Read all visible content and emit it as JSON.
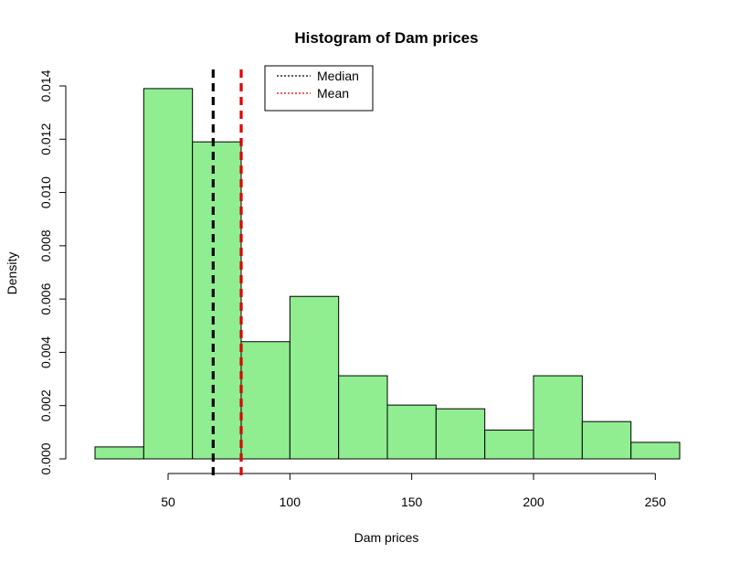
{
  "chart_data": {
    "type": "histogram",
    "title": "Histogram of Dam prices",
    "xlabel": "Dam prices",
    "ylabel": "Density",
    "xlim": [
      20,
      260
    ],
    "ylim": [
      0,
      0.014
    ],
    "x_ticks": [
      50,
      100,
      150,
      200,
      250
    ],
    "y_ticks": [
      "0.000",
      "0.002",
      "0.004",
      "0.006",
      "0.008",
      "0.010",
      "0.012",
      "0.014"
    ],
    "bins": [
      {
        "start": 20,
        "end": 40,
        "density": 0.00045
      },
      {
        "start": 40,
        "end": 60,
        "density": 0.0139
      },
      {
        "start": 60,
        "end": 80,
        "density": 0.0119
      },
      {
        "start": 80,
        "end": 100,
        "density": 0.0044
      },
      {
        "start": 100,
        "end": 120,
        "density": 0.0061
      },
      {
        "start": 120,
        "end": 140,
        "density": 0.00312
      },
      {
        "start": 140,
        "end": 160,
        "density": 0.00202
      },
      {
        "start": 160,
        "end": 180,
        "density": 0.00188
      },
      {
        "start": 180,
        "end": 200,
        "density": 0.00108
      },
      {
        "start": 200,
        "end": 220,
        "density": 0.00312
      },
      {
        "start": 220,
        "end": 240,
        "density": 0.0014
      },
      {
        "start": 240,
        "end": 260,
        "density": 0.00062
      }
    ],
    "bar_color": "#90ee90",
    "reference_lines": [
      {
        "name": "Median",
        "x": 68.5,
        "color": "#000000",
        "style": "dashed"
      },
      {
        "name": "Mean",
        "x": 80,
        "color": "#dd0000",
        "style": "dashed"
      }
    ],
    "legend": {
      "position": "top",
      "entries": [
        {
          "label": "Median",
          "color": "#000000",
          "style": "dotted"
        },
        {
          "label": "Mean",
          "color": "#dd0000",
          "style": "dotted"
        }
      ]
    },
    "grid": false
  }
}
